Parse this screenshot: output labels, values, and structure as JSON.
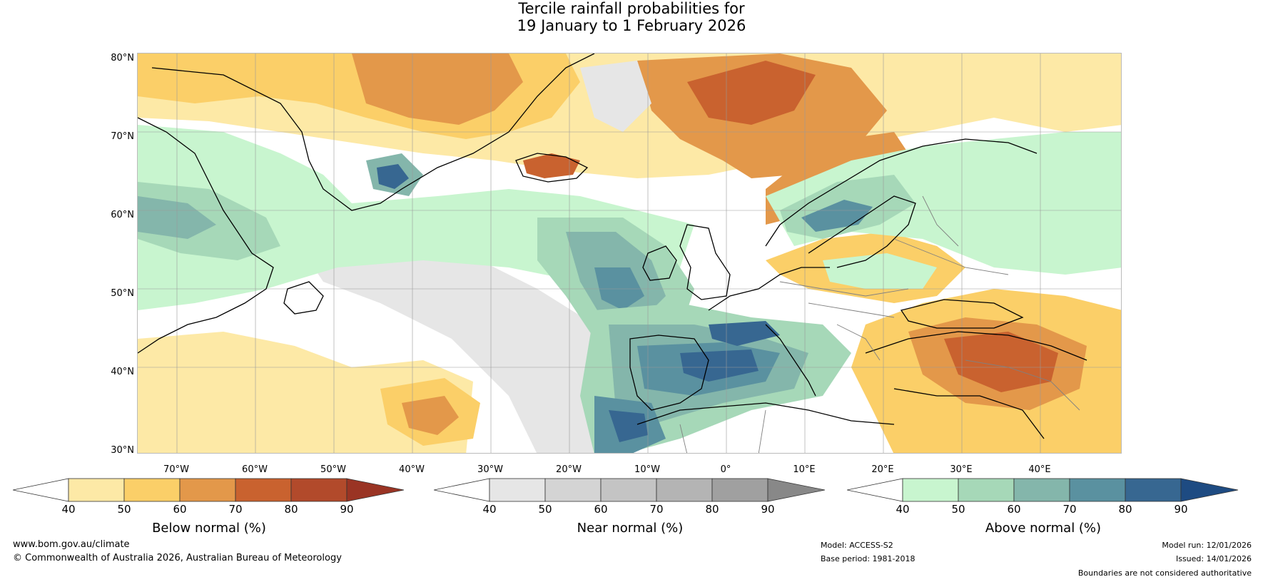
{
  "title": {
    "line1": "Tercile rainfall probabilities for",
    "line2": "19 January to 1 February 2026"
  },
  "map": {
    "lat_labels": [
      "80°N",
      "70°N",
      "60°N",
      "50°N",
      "40°N",
      "30°N"
    ],
    "lon_labels": [
      "70°W",
      "60°W",
      "50°W",
      "40°W",
      "30°W",
      "20°W",
      "10°W",
      "0°",
      "10°E",
      "20°E",
      "30°E",
      "40°E"
    ],
    "colors": {
      "below": [
        "#fde9a6",
        "#fbcf68",
        "#e3984a",
        "#c9622f",
        "#b24a2b",
        "#9a3424"
      ],
      "near": [
        "#e6e6e6",
        "#d4d4d4",
        "#c4c4c4",
        "#b4b4b4",
        "#a0a0a0",
        "#888888"
      ],
      "above": [
        "#c8f5cf",
        "#a6d8b8",
        "#84b6ab",
        "#5a91a0",
        "#376791",
        "#1e4b82"
      ],
      "coast": "#000000",
      "border": "#808080"
    }
  },
  "colorbars": [
    {
      "label": "Below normal (%)",
      "ticks": [
        "40",
        "50",
        "60",
        "70",
        "80",
        "90"
      ]
    },
    {
      "label": "Near normal (%)",
      "ticks": [
        "40",
        "50",
        "60",
        "70",
        "80",
        "90"
      ]
    },
    {
      "label": "Above normal (%)",
      "ticks": [
        "40",
        "50",
        "60",
        "70",
        "80",
        "90"
      ]
    }
  ],
  "footer": {
    "url": "www.bom.gov.au/climate",
    "copyright": "© Commonwealth of Australia 2026, Australian Bureau of Meteorology",
    "model": "Model: ACCESS-S2",
    "base_period": "Base period: 1981-2018",
    "model_run": "Model run: 12/01/2026",
    "issued": "Issued: 14/01/2026",
    "disclaimer": "Boundaries are not considered authoritative"
  }
}
